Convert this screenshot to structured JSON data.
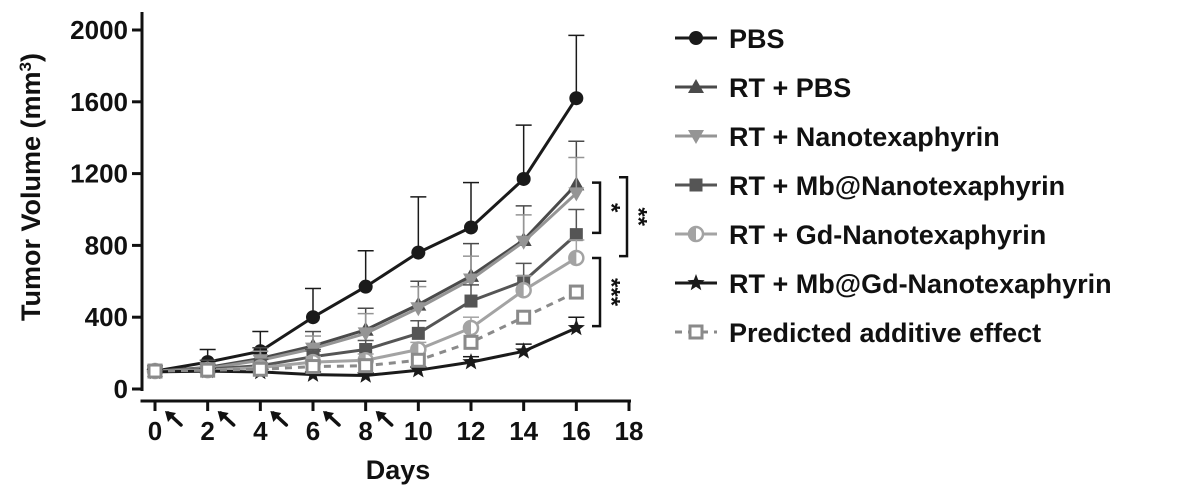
{
  "chart_data": {
    "type": "line",
    "xlabel": "Days",
    "ylabel": "Tumor Volume (mm",
    "ylabel_sup": "3",
    "ylabel_close": ")",
    "xlim": [
      0,
      18
    ],
    "ylim": [
      0,
      2000
    ],
    "xticks": [
      0,
      2,
      4,
      6,
      8,
      10,
      12,
      14,
      16,
      18
    ],
    "xtick_labels": [
      "0",
      "2",
      "4",
      "6",
      "8",
      "10",
      "12",
      "14",
      "16",
      "18"
    ],
    "yticks": [
      0,
      400,
      800,
      1200,
      1600,
      2000
    ],
    "ytick_labels": [
      "0",
      "400",
      "800",
      "1200",
      "1600",
      "2000"
    ],
    "grid": false,
    "legend_position": "right",
    "treatment_days": [
      0,
      2,
      4,
      6,
      8
    ],
    "x": [
      0,
      2,
      4,
      6,
      8,
      10,
      12,
      14,
      16
    ],
    "series": [
      {
        "name": "PBS",
        "marker": "circle",
        "color": "#1a1a1a",
        "dashed": false,
        "values": [
          100,
          150,
          210,
          400,
          570,
          760,
          900,
          1170,
          1620
        ],
        "errors": [
          30,
          70,
          110,
          160,
          200,
          310,
          250,
          300,
          350
        ]
      },
      {
        "name": "RT + PBS",
        "marker": "triangle-up",
        "color": "#4a4a4a",
        "dashed": false,
        "values": [
          100,
          120,
          170,
          240,
          330,
          470,
          630,
          830,
          1140
        ],
        "errors": [
          30,
          40,
          60,
          80,
          120,
          130,
          180,
          190,
          240
        ]
      },
      {
        "name": "RT + Nanotexaphyrin",
        "marker": "triangle-down",
        "color": "#959595",
        "dashed": false,
        "values": [
          100,
          115,
          160,
          225,
          310,
          450,
          610,
          820,
          1090
        ],
        "errors": [
          25,
          30,
          50,
          70,
          110,
          120,
          130,
          150,
          200
        ]
      },
      {
        "name": "RT + Mb@Nanotexaphyrin",
        "marker": "square",
        "color": "#555555",
        "dashed": false,
        "values": [
          100,
          110,
          130,
          180,
          220,
          310,
          490,
          600,
          860
        ],
        "errors": [
          20,
          25,
          35,
          40,
          50,
          70,
          90,
          100,
          140
        ]
      },
      {
        "name": "RT + Gd-Nanotexaphyrin",
        "marker": "half-circle",
        "color": "#a3a3a3",
        "dashed": false,
        "values": [
          100,
          105,
          120,
          150,
          160,
          220,
          340,
          550,
          730
        ],
        "errors": [
          20,
          20,
          25,
          30,
          35,
          40,
          60,
          80,
          100
        ]
      },
      {
        "name": "RT + Mb@Gd-Nanotexaphyrin",
        "marker": "star",
        "color": "#1a1a1a",
        "dashed": false,
        "values": [
          95,
          100,
          95,
          80,
          75,
          105,
          150,
          210,
          340
        ],
        "errors": [
          15,
          15,
          15,
          15,
          15,
          20,
          30,
          40,
          60
        ]
      },
      {
        "name": "Predicted additive effect",
        "marker": "open-square",
        "color": "#8a8a8a",
        "dashed": true,
        "values": [
          100,
          105,
          110,
          125,
          130,
          160,
          260,
          400,
          540
        ],
        "errors": [
          0,
          0,
          0,
          0,
          0,
          0,
          0,
          0,
          0
        ]
      }
    ],
    "significance": [
      {
        "label": "*",
        "from_y": 1150,
        "to_y": 870
      },
      {
        "label": "**",
        "from_y": 1180,
        "to_y": 740
      },
      {
        "label": "***",
        "from_y": 730,
        "to_y": 350
      }
    ]
  }
}
